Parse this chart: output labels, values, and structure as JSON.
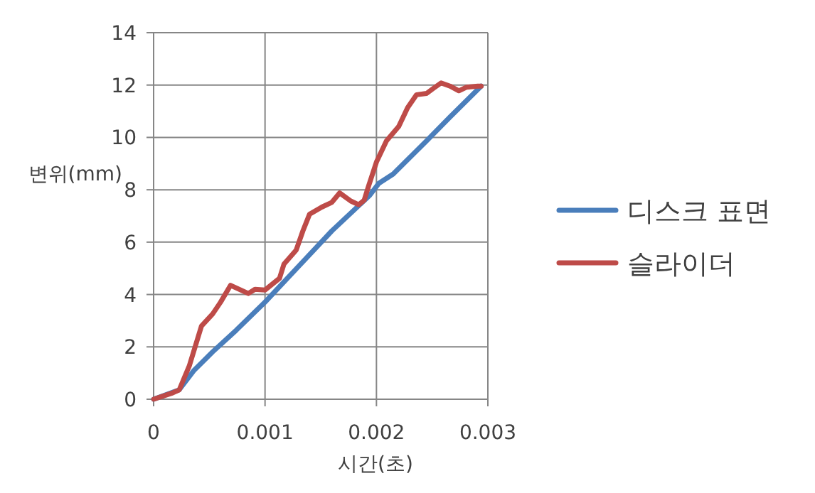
{
  "chart_data": {
    "type": "line",
    "xlabel": "시간(초)",
    "ylabel": "변위(mm)",
    "xlim": [
      0,
      0.003
    ],
    "xticks": [
      0,
      0.001,
      0.002,
      0.003
    ],
    "ylim": [
      0,
      14
    ],
    "yticks": [
      0,
      2,
      4,
      6,
      8,
      10,
      12,
      14
    ],
    "grid": true,
    "legend": "right",
    "marker": "none",
    "line_style": "solid",
    "series": [
      {
        "name": "디스크 표면",
        "color": "#4a7ebb",
        "x": [
          0,
          0.00023,
          0.00036,
          0.00053,
          0.00074,
          0.001,
          0.0013,
          0.0016,
          0.00194,
          0.00202,
          0.00215,
          0.00245,
          0.00266,
          0.00294
        ],
        "values": [
          0,
          0.36,
          1.09,
          1.81,
          2.63,
          3.71,
          5.07,
          6.43,
          7.79,
          8.24,
          8.6,
          9.87,
          10.78,
          11.96
        ]
      },
      {
        "name": "슬라이더",
        "color": "#be4b48",
        "x": [
          0,
          0.00017,
          0.00023,
          0.00032,
          0.00043,
          0.00053,
          0.0006,
          0.00069,
          0.00085,
          0.00091,
          0.001,
          0.00113,
          0.00117,
          0.00128,
          0.00134,
          0.0014,
          0.00151,
          0.0016,
          0.00167,
          0.00177,
          0.00184,
          0.00189,
          0.00193,
          0.002,
          0.00209,
          0.0022,
          0.00228,
          0.00236,
          0.00245,
          0.00251,
          0.00258,
          0.00266,
          0.00274,
          0.00281,
          0.00291,
          0.00294
        ],
        "values": [
          0,
          0.24,
          0.36,
          1.27,
          2.8,
          3.26,
          3.7,
          4.35,
          4.04,
          4.2,
          4.17,
          4.62,
          5.16,
          5.7,
          6.43,
          7.07,
          7.34,
          7.52,
          7.88,
          7.57,
          7.43,
          7.6,
          8.15,
          9.06,
          9.87,
          10.42,
          11.14,
          11.63,
          11.68,
          11.87,
          12.08,
          11.96,
          11.78,
          11.92,
          11.96,
          11.96
        ]
      }
    ]
  }
}
